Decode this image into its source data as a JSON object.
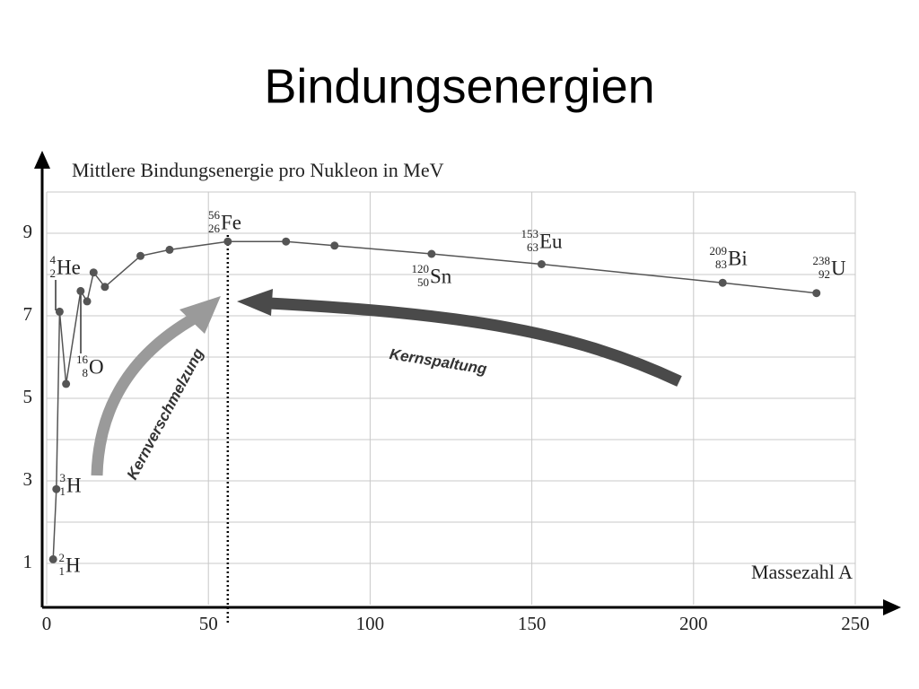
{
  "title": "Bindungsenergien",
  "chart_data": {
    "type": "line",
    "y_label": "Mittlere Bindungsenergie pro Nukleon in MeV",
    "x_label": "Massezahl A",
    "series": [
      {
        "color": "#555555",
        "x": [
          2,
          3,
          4,
          6,
          10.5,
          12.5,
          14.5,
          18,
          29,
          38,
          56,
          74,
          89,
          119,
          153,
          209,
          238
        ],
        "values": [
          1.1,
          2.8,
          7.1,
          5.35,
          7.6,
          7.35,
          8.05,
          7.7,
          8.45,
          8.6,
          8.8,
          8.8,
          8.7,
          8.5,
          8.25,
          7.8,
          7.55
        ]
      }
    ],
    "xlim": [
      0,
      250
    ],
    "ylim": [
      0,
      10
    ],
    "xticks": [
      0,
      50,
      100,
      150,
      200,
      250
    ],
    "yticks": [
      1,
      3,
      5,
      7,
      9
    ],
    "y_minor_grid": [
      2,
      4,
      6,
      8,
      10
    ],
    "grid": true,
    "vline": 56,
    "annotations": [
      {
        "mass": "2",
        "charge": "1",
        "symbol": "H"
      },
      {
        "mass": "3",
        "charge": "1",
        "symbol": "H"
      },
      {
        "mass": "4",
        "charge": "2",
        "symbol": "He"
      },
      {
        "mass": "16",
        "charge": "8",
        "symbol": "O"
      },
      {
        "mass": "56",
        "charge": "26",
        "symbol": "Fe"
      },
      {
        "mass": "120",
        "charge": "50",
        "symbol": "Sn"
      },
      {
        "mass": "153",
        "charge": "63",
        "symbol": "Eu"
      },
      {
        "mass": "209",
        "charge": "83",
        "symbol": "Bi"
      },
      {
        "mass": "238",
        "charge": "92",
        "symbol": "U"
      }
    ],
    "fusion_label": "Kernverschmelzung",
    "fission_label": "Kernspaltung"
  }
}
